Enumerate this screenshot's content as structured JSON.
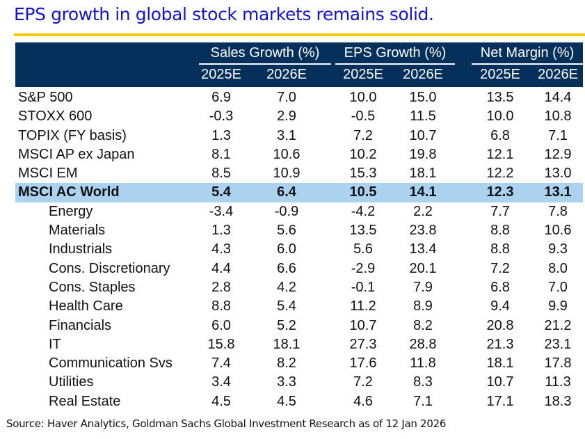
{
  "title": "EPS growth in global stock markets remains solid.",
  "colors": {
    "title": "#1414d0",
    "rule": "#f5c800",
    "header_bg": "#05305c",
    "highlight_bg": "#abd3f0"
  },
  "header": {
    "groups": [
      {
        "label": "Sales Growth (%)",
        "years": [
          "2025E",
          "2026E"
        ]
      },
      {
        "label": "EPS Growth (%)",
        "years": [
          "2025E",
          "2026E"
        ]
      },
      {
        "label": "Net Margin (%)",
        "years": [
          "2025E",
          "2026E"
        ]
      }
    ]
  },
  "rows": [
    {
      "label": "S&P 500",
      "type": "index",
      "values": [
        "6.9",
        "7.0",
        "10.0",
        "15.0",
        "13.5",
        "14.4"
      ]
    },
    {
      "label": "STOXX 600",
      "type": "index",
      "values": [
        "-0.3",
        "2.9",
        "-0.5",
        "11.5",
        "10.0",
        "10.8"
      ]
    },
    {
      "label": "TOPIX (FY basis)",
      "type": "index",
      "values": [
        "1.3",
        "3.1",
        "7.2",
        "10.7",
        "6.8",
        "7.1"
      ]
    },
    {
      "label": "MSCI AP ex Japan",
      "type": "index",
      "values": [
        "8.1",
        "10.6",
        "10.2",
        "19.8",
        "12.1",
        "12.9"
      ]
    },
    {
      "label": "MSCI EM",
      "type": "index",
      "values": [
        "8.5",
        "10.9",
        "15.3",
        "18.1",
        "12.2",
        "13.0"
      ]
    },
    {
      "label": "MSCI AC World",
      "type": "highlight",
      "values": [
        "5.4",
        "6.4",
        "10.5",
        "14.1",
        "12.3",
        "13.1"
      ]
    },
    {
      "label": "Energy",
      "type": "sector",
      "values": [
        "-3.4",
        "-0.9",
        "-4.2",
        "2.2",
        "7.7",
        "7.8"
      ]
    },
    {
      "label": "Materials",
      "type": "sector",
      "values": [
        "1.3",
        "5.6",
        "13.5",
        "23.8",
        "8.8",
        "10.6"
      ]
    },
    {
      "label": "Industrials",
      "type": "sector",
      "values": [
        "4.3",
        "6.0",
        "5.6",
        "13.4",
        "8.8",
        "9.3"
      ]
    },
    {
      "label": "Cons. Discretionary",
      "type": "sector",
      "values": [
        "4.4",
        "6.6",
        "-2.9",
        "20.1",
        "7.2",
        "8.0"
      ]
    },
    {
      "label": "Cons. Staples",
      "type": "sector",
      "values": [
        "2.8",
        "4.2",
        "-0.1",
        "7.9",
        "6.8",
        "7.0"
      ]
    },
    {
      "label": "Health Care",
      "type": "sector",
      "values": [
        "8.8",
        "5.4",
        "11.2",
        "8.9",
        "9.4",
        "9.9"
      ]
    },
    {
      "label": "Financials",
      "type": "sector",
      "values": [
        "6.0",
        "5.2",
        "10.7",
        "8.2",
        "20.8",
        "21.2"
      ]
    },
    {
      "label": "IT",
      "type": "sector",
      "values": [
        "15.8",
        "18.1",
        "27.3",
        "28.8",
        "21.3",
        "23.1"
      ]
    },
    {
      "label": "Communication Svs",
      "type": "sector",
      "values": [
        "7.4",
        "8.2",
        "17.6",
        "11.8",
        "18.1",
        "17.8"
      ]
    },
    {
      "label": "Utilities",
      "type": "sector",
      "values": [
        "3.4",
        "3.3",
        "7.2",
        "8.3",
        "10.7",
        "11.3"
      ]
    },
    {
      "label": "Real Estate",
      "type": "sector",
      "values": [
        "4.5",
        "4.5",
        "4.6",
        "7.1",
        "17.1",
        "18.3"
      ]
    }
  ],
  "source": "Source: Haver Analytics, Goldman Sachs Global Investment Research as of 12 Jan 2026"
}
